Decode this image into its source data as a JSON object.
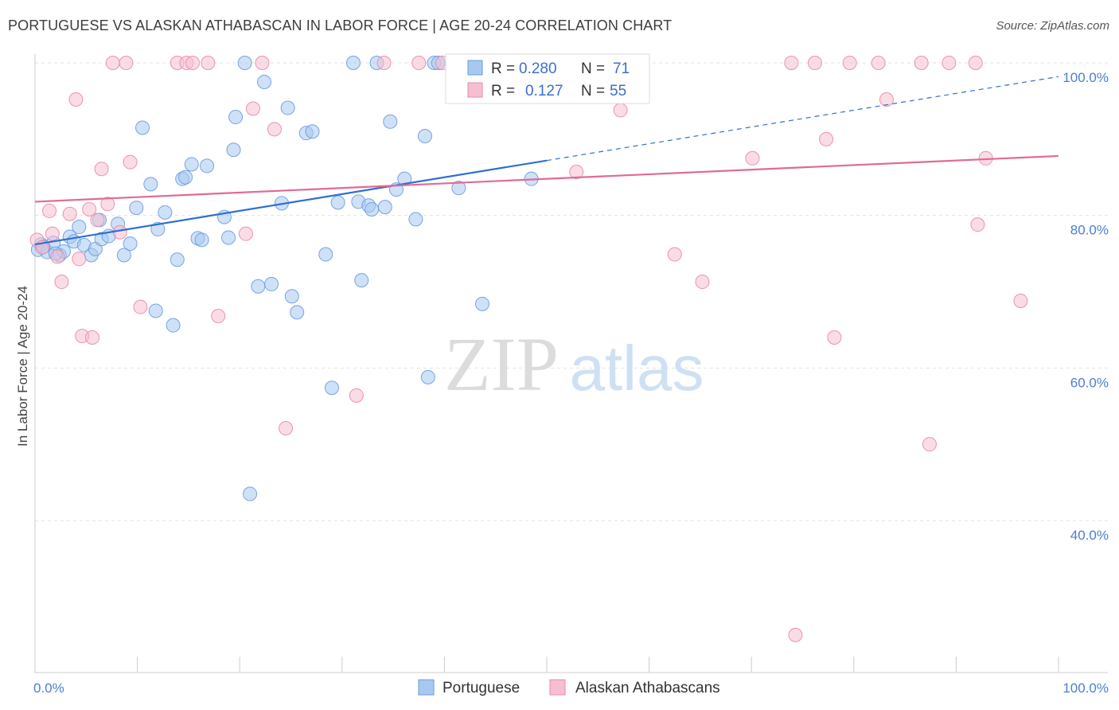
{
  "title": "PORTUGUESE VS ALASKAN ATHABASCAN IN LABOR FORCE | AGE 20-24 CORRELATION CHART",
  "source": "Source: ZipAtlas.com",
  "watermark": {
    "zip": "ZIP",
    "atlas": "atlas"
  },
  "legend": {
    "r_label": "R =",
    "n_label": "N =",
    "entries": [
      {
        "r": "0.280",
        "n": "71",
        "color": "#a8c8f0",
        "stroke": "#6a9be0"
      },
      {
        "r": "0.127",
        "n": "55",
        "color": "#f6bfd0",
        "stroke": "#e88aa8"
      }
    ]
  },
  "bottom_legend": [
    "Portuguese",
    "Alaskan Athabascans"
  ],
  "chart_data": {
    "type": "scatter",
    "title": "PORTUGUESE VS ALASKAN ATHABASCAN IN LABOR FORCE | AGE 20-24 CORRELATION CHART",
    "xlabel": "",
    "ylabel": "In Labor Force | Age 20-24",
    "xlim": [
      0,
      100
    ],
    "ylim": [
      18,
      102
    ],
    "x_tick_labels": [
      "0.0%",
      "100.0%"
    ],
    "y_ticks": [
      40,
      60,
      80,
      100
    ],
    "y_tick_labels": [
      "40.0%",
      "60.0%",
      "80.0%",
      "100.0%"
    ],
    "grid": true,
    "legend_position": "top-center",
    "series": [
      {
        "name": "Portuguese",
        "color": "#6a9be0",
        "fill": "#a8c8f0",
        "trend": {
          "x": [
            0,
            50
          ],
          "y": [
            76.2,
            87.2
          ],
          "dashed_to": [
            100,
            98.2
          ]
        },
        "points": [
          [
            0.3,
            75.5
          ],
          [
            0.6,
            76.2
          ],
          [
            1.2,
            75.2
          ],
          [
            1.8,
            76.4
          ],
          [
            2.4,
            74.8
          ],
          [
            2.8,
            75.3
          ],
          [
            3.4,
            77.2
          ],
          [
            3.8,
            76.6
          ],
          [
            4.3,
            78.5
          ],
          [
            4.8,
            76.1
          ],
          [
            5.5,
            74.8
          ],
          [
            5.9,
            75.6
          ],
          [
            6.5,
            76.9
          ],
          [
            7.2,
            77.3
          ],
          [
            8.1,
            78.9
          ],
          [
            8.7,
            74.8
          ],
          [
            9.3,
            76.3
          ],
          [
            9.9,
            81.0
          ],
          [
            10.5,
            91.5
          ],
          [
            11.3,
            84.1
          ],
          [
            12.0,
            78.2
          ],
          [
            12.7,
            80.4
          ],
          [
            13.5,
            65.6
          ],
          [
            13.9,
            74.2
          ],
          [
            14.4,
            84.8
          ],
          [
            14.7,
            85.0
          ],
          [
            15.3,
            86.7
          ],
          [
            15.9,
            77.0
          ],
          [
            16.3,
            76.8
          ],
          [
            16.8,
            86.5
          ],
          [
            18.5,
            79.8
          ],
          [
            18.9,
            77.1
          ],
          [
            19.4,
            88.6
          ],
          [
            19.6,
            92.9
          ],
          [
            20.5,
            100
          ],
          [
            21.0,
            43.5
          ],
          [
            21.8,
            70.7
          ],
          [
            22.4,
            97.5
          ],
          [
            23.1,
            71.0
          ],
          [
            24.1,
            81.6
          ],
          [
            24.7,
            94.1
          ],
          [
            25.1,
            69.4
          ],
          [
            25.6,
            67.3
          ],
          [
            26.5,
            90.8
          ],
          [
            27.1,
            91.0
          ],
          [
            28.4,
            74.9
          ],
          [
            29.0,
            57.4
          ],
          [
            29.6,
            81.7
          ],
          [
            31.1,
            100
          ],
          [
            31.6,
            81.8
          ],
          [
            31.9,
            71.5
          ],
          [
            32.6,
            81.3
          ],
          [
            32.9,
            80.8
          ],
          [
            33.4,
            100
          ],
          [
            34.2,
            81.1
          ],
          [
            34.7,
            92.3
          ],
          [
            35.3,
            83.4
          ],
          [
            36.1,
            84.8
          ],
          [
            37.2,
            79.5
          ],
          [
            38.1,
            90.4
          ],
          [
            38.4,
            58.8
          ],
          [
            39.0,
            100
          ],
          [
            39.4,
            100
          ],
          [
            41.4,
            83.6
          ],
          [
            43.3,
            100
          ],
          [
            43.7,
            68.4
          ],
          [
            48.5,
            84.8
          ],
          [
            0.8,
            75.9
          ],
          [
            2.0,
            75.0
          ],
          [
            6.3,
            79.4
          ],
          [
            11.8,
            67.5
          ]
        ]
      },
      {
        "name": "Alaskan Athabascans",
        "color": "#e88aa8",
        "fill": "#f6bfd0",
        "trend": {
          "x": [
            0,
            100
          ],
          "y": [
            81.8,
            87.8
          ]
        },
        "points": [
          [
            0.2,
            76.8
          ],
          [
            0.7,
            75.8
          ],
          [
            1.4,
            80.6
          ],
          [
            1.7,
            77.6
          ],
          [
            2.2,
            74.6
          ],
          [
            2.6,
            71.3
          ],
          [
            3.4,
            80.2
          ],
          [
            4.0,
            95.2
          ],
          [
            4.3,
            74.3
          ],
          [
            4.6,
            64.2
          ],
          [
            5.3,
            80.8
          ],
          [
            5.6,
            64.0
          ],
          [
            6.1,
            79.4
          ],
          [
            6.5,
            86.1
          ],
          [
            7.1,
            81.5
          ],
          [
            7.6,
            100
          ],
          [
            8.3,
            77.8
          ],
          [
            8.9,
            100
          ],
          [
            9.3,
            87.0
          ],
          [
            10.3,
            68.0
          ],
          [
            13.9,
            100
          ],
          [
            14.8,
            100
          ],
          [
            15.4,
            100
          ],
          [
            16.9,
            100
          ],
          [
            17.9,
            66.8
          ],
          [
            20.6,
            77.6
          ],
          [
            21.3,
            94.0
          ],
          [
            22.2,
            100
          ],
          [
            23.4,
            91.3
          ],
          [
            24.5,
            52.1
          ],
          [
            31.4,
            56.4
          ],
          [
            34.1,
            100
          ],
          [
            37.5,
            100
          ],
          [
            39.8,
            100
          ],
          [
            44.0,
            100
          ],
          [
            52.9,
            85.7
          ],
          [
            57.2,
            93.8
          ],
          [
            62.5,
            74.9
          ],
          [
            65.2,
            71.3
          ],
          [
            70.1,
            87.5
          ],
          [
            73.9,
            100
          ],
          [
            74.3,
            25.0
          ],
          [
            76.2,
            100
          ],
          [
            77.3,
            90.0
          ],
          [
            78.1,
            64.0
          ],
          [
            79.6,
            100
          ],
          [
            82.4,
            100
          ],
          [
            83.2,
            95.2
          ],
          [
            86.6,
            100
          ],
          [
            87.4,
            50.0
          ],
          [
            89.3,
            100
          ],
          [
            91.9,
            100
          ],
          [
            92.1,
            78.8
          ],
          [
            92.9,
            87.5
          ],
          [
            96.3,
            68.8
          ]
        ]
      }
    ]
  }
}
